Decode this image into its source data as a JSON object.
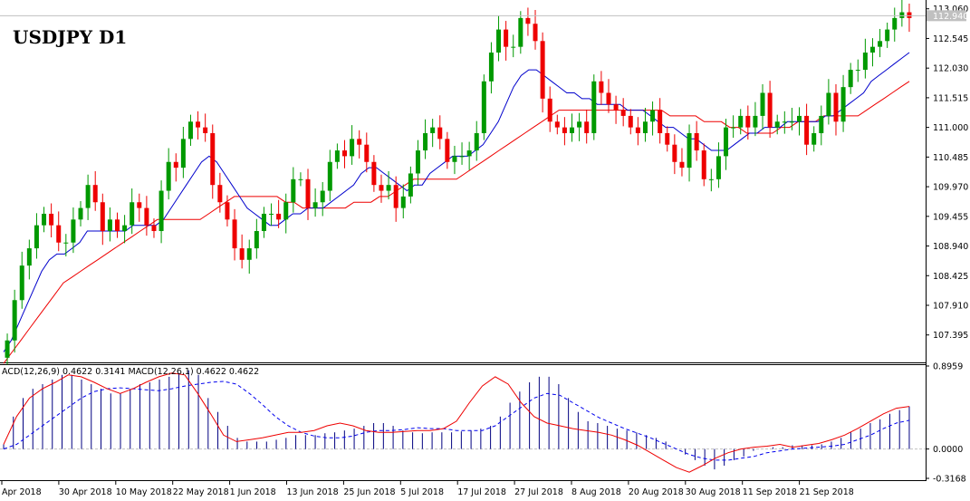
{
  "chart_data": [
    {
      "type": "candlestick",
      "title": "USDJPY D1",
      "colors": {
        "bull": "#009900",
        "bear": "#ee0000",
        "ma_fast": "#0000cc",
        "ma_slow": "#ee0000",
        "current_price_line": "#c0c0c0"
      },
      "ylim": [
        106.95,
        113.15
      ],
      "yticks": [
        "113.060",
        "112.545",
        "112.030",
        "111.515",
        "111.000",
        "110.485",
        "109.970",
        "109.455",
        "108.940",
        "108.425",
        "107.910",
        "107.395"
      ],
      "current_price": "112.940",
      "xticks": [
        "Apr 2018",
        "30 Apr 2018",
        "10 May 2018",
        "22 May 2018",
        "1 Jun 2018",
        "13 Jun 2018",
        "25 Jun 2018",
        "5 Jul 2018",
        "17 Jul 2018",
        "27 Jul 2018",
        "8 Aug 2018",
        "20 Aug 2018",
        "30 Aug 2018",
        "11 Sep 2018",
        "21 Sep 2018"
      ],
      "candles_close": [
        107.3,
        108.0,
        108.6,
        108.9,
        109.3,
        109.5,
        109.3,
        109.0,
        109.0,
        109.4,
        109.6,
        110.0,
        109.7,
        109.2,
        109.4,
        109.2,
        109.3,
        109.7,
        109.6,
        109.3,
        109.2,
        109.9,
        110.4,
        110.3,
        110.8,
        111.1,
        111.0,
        110.9,
        110.0,
        109.7,
        109.4,
        108.9,
        108.7,
        108.9,
        109.2,
        109.5,
        109.5,
        109.4,
        109.7,
        110.1,
        110.1,
        109.6,
        109.7,
        109.9,
        110.4,
        110.6,
        110.5,
        110.8,
        110.7,
        110.4,
        110.0,
        109.9,
        110.0,
        109.6,
        109.8,
        110.2,
        110.6,
        110.9,
        111.0,
        110.8,
        110.4,
        110.5,
        110.5,
        110.6,
        110.9,
        111.8,
        112.3,
        112.7,
        112.4,
        112.4,
        112.9,
        112.8,
        112.5,
        111.5,
        111.1,
        111.0,
        110.9,
        111.0,
        111.1,
        110.9,
        111.8,
        111.6,
        111.4,
        111.3,
        111.2,
        111.0,
        110.9,
        111.1,
        111.3,
        110.9,
        110.7,
        110.4,
        110.3,
        110.9,
        110.6,
        110.1,
        110.1,
        110.5,
        111.0,
        111.0,
        111.2,
        111.0,
        111.2,
        111.6,
        111.0,
        111.1,
        111.1,
        111.1,
        111.2,
        110.7,
        110.9,
        111.2,
        111.6,
        111.1,
        111.7,
        112.0,
        112.0,
        112.3,
        112.4,
        112.5,
        112.7,
        112.9,
        113.0,
        112.9
      ],
      "ma_fast": [
        107.1,
        107.3,
        107.6,
        107.9,
        108.2,
        108.5,
        108.7,
        108.8,
        108.8,
        108.9,
        109.0,
        109.2,
        109.2,
        109.2,
        109.2,
        109.2,
        109.2,
        109.3,
        109.3,
        109.3,
        109.3,
        109.4,
        109.6,
        109.8,
        110.0,
        110.2,
        110.4,
        110.5,
        110.4,
        110.2,
        110.0,
        109.8,
        109.6,
        109.5,
        109.4,
        109.3,
        109.3,
        109.4,
        109.5,
        109.5,
        109.6,
        109.6,
        109.6,
        109.7,
        109.8,
        109.9,
        110.0,
        110.2,
        110.3,
        110.3,
        110.2,
        110.1,
        110.0,
        109.9,
        110.0,
        110.0,
        110.2,
        110.3,
        110.4,
        110.5,
        110.5,
        110.5,
        110.6,
        110.7,
        110.9,
        111.1,
        111.4,
        111.7,
        111.9,
        112.0,
        112.0,
        111.9,
        111.8,
        111.7,
        111.6,
        111.6,
        111.5,
        111.5,
        111.4,
        111.4,
        111.4,
        111.4,
        111.3,
        111.3,
        111.3,
        111.2,
        111.1,
        111.0,
        111.0,
        110.9,
        110.8,
        110.8,
        110.7,
        110.6,
        110.6,
        110.6,
        110.7,
        110.8,
        110.9,
        110.9,
        111.0,
        111.0,
        111.0,
        111.1,
        111.1,
        111.1,
        111.1,
        111.1,
        111.2,
        111.2,
        111.3,
        111.4,
        111.5,
        111.6,
        111.8,
        111.9,
        112.0,
        112.1,
        112.2,
        112.3
      ],
      "ma_slow": [
        106.9,
        107.1,
        107.3,
        107.5,
        107.7,
        107.9,
        108.1,
        108.3,
        108.4,
        108.5,
        108.6,
        108.7,
        108.8,
        108.9,
        109.0,
        109.1,
        109.2,
        109.3,
        109.4,
        109.4,
        109.4,
        109.4,
        109.4,
        109.4,
        109.5,
        109.6,
        109.7,
        109.8,
        109.8,
        109.8,
        109.8,
        109.8,
        109.8,
        109.7,
        109.7,
        109.6,
        109.6,
        109.6,
        109.6,
        109.6,
        109.6,
        109.7,
        109.7,
        109.7,
        109.8,
        109.8,
        109.9,
        110.0,
        110.1,
        110.1,
        110.1,
        110.1,
        110.1,
        110.1,
        110.2,
        110.3,
        110.4,
        110.5,
        110.6,
        110.7,
        110.8,
        110.9,
        111.0,
        111.1,
        111.2,
        111.3,
        111.3,
        111.3,
        111.3,
        111.3,
        111.3,
        111.3,
        111.3,
        111.3,
        111.3,
        111.3,
        111.3,
        111.3,
        111.2,
        111.2,
        111.2,
        111.2,
        111.1,
        111.1,
        111.1,
        111.0,
        111.0,
        110.9,
        110.9,
        110.9,
        110.9,
        111.0,
        111.0,
        111.1,
        111.1,
        111.1,
        111.2,
        111.2,
        111.2,
        111.2,
        111.2,
        111.3,
        111.4,
        111.5,
        111.6,
        111.7,
        111.8
      ],
      "last_close": 112.94
    },
    {
      "type": "macd",
      "label": "ACD(12,26,9) 0.4622 0.3141 MACD(12,26,1) 0.4622 0.4622",
      "ylim": [
        -0.3168,
        0.8959
      ],
      "yticks": [
        "0.8959",
        "0.0000",
        "-0.3168"
      ],
      "colors": {
        "histogram": "#000080",
        "signal": "#0000ee",
        "macd_line": "#ee0000"
      },
      "histogram": [
        0.05,
        0.35,
        0.55,
        0.65,
        0.7,
        0.75,
        0.8,
        0.8,
        0.75,
        0.7,
        0.65,
        0.6,
        0.6,
        0.65,
        0.7,
        0.72,
        0.75,
        0.78,
        0.82,
        0.85,
        0.8,
        0.55,
        0.4,
        0.25,
        0.12,
        0.08,
        0.08,
        0.08,
        0.1,
        0.12,
        0.15,
        0.15,
        0.15,
        0.17,
        0.18,
        0.2,
        0.22,
        0.25,
        0.28,
        0.28,
        0.25,
        0.2,
        0.18,
        0.17,
        0.18,
        0.18,
        0.18,
        0.19,
        0.2,
        0.22,
        0.25,
        0.35,
        0.5,
        0.62,
        0.72,
        0.78,
        0.78,
        0.7,
        0.55,
        0.4,
        0.3,
        0.28,
        0.25,
        0.22,
        0.2,
        0.18,
        0.15,
        0.12,
        0.08,
        0.0,
        -0.06,
        -0.12,
        -0.18,
        -0.22,
        -0.18,
        -0.12,
        -0.08,
        -0.02,
        0.0,
        0.02,
        0.02,
        0.04,
        0.04,
        0.04,
        0.05,
        0.08,
        0.12,
        0.18,
        0.22,
        0.28,
        0.32,
        0.38,
        0.42,
        0.46
      ],
      "signal": [
        0.0,
        0.05,
        0.15,
        0.25,
        0.35,
        0.45,
        0.55,
        0.62,
        0.65,
        0.66,
        0.65,
        0.64,
        0.63,
        0.65,
        0.68,
        0.7,
        0.72,
        0.73,
        0.7,
        0.6,
        0.48,
        0.35,
        0.25,
        0.18,
        0.14,
        0.12,
        0.12,
        0.14,
        0.18,
        0.2,
        0.2,
        0.21,
        0.23,
        0.22,
        0.22,
        0.2,
        0.2,
        0.2,
        0.25,
        0.35,
        0.45,
        0.55,
        0.6,
        0.58,
        0.5,
        0.42,
        0.34,
        0.28,
        0.22,
        0.17,
        0.12,
        0.06,
        0.0,
        -0.06,
        -0.1,
        -0.12,
        -0.12,
        -0.1,
        -0.08,
        -0.04,
        -0.02,
        0.0,
        0.01,
        0.02,
        0.03,
        0.05,
        0.1,
        0.15,
        0.22,
        0.28,
        0.31
      ],
      "macd_line": [
        0.05,
        0.35,
        0.55,
        0.65,
        0.72,
        0.8,
        0.78,
        0.72,
        0.65,
        0.6,
        0.65,
        0.72,
        0.78,
        0.82,
        0.8,
        0.6,
        0.38,
        0.15,
        0.08,
        0.1,
        0.12,
        0.15,
        0.18,
        0.18,
        0.2,
        0.25,
        0.28,
        0.25,
        0.2,
        0.18,
        0.18,
        0.19,
        0.2,
        0.2,
        0.22,
        0.3,
        0.5,
        0.68,
        0.78,
        0.7,
        0.5,
        0.35,
        0.28,
        0.25,
        0.22,
        0.2,
        0.18,
        0.15,
        0.1,
        0.04,
        -0.04,
        -0.12,
        -0.2,
        -0.25,
        -0.18,
        -0.1,
        -0.04,
        0.0,
        0.02,
        0.03,
        0.05,
        0.02,
        0.04,
        0.06,
        0.1,
        0.15,
        0.22,
        0.3,
        0.38,
        0.44,
        0.46
      ]
    }
  ]
}
